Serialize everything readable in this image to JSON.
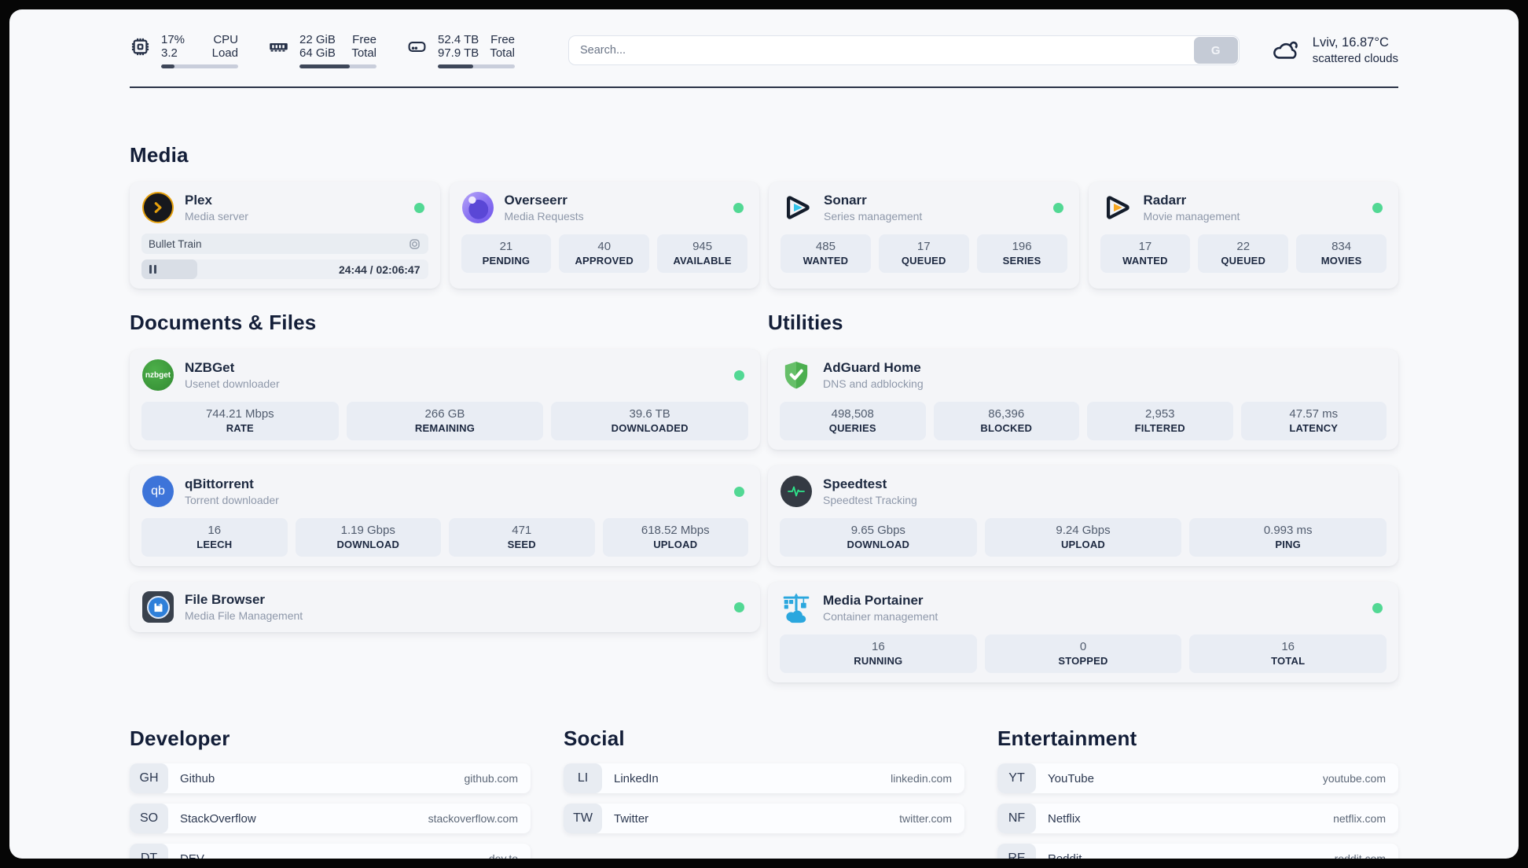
{
  "colors": {
    "status_online": "#52d894",
    "plex_accent": "#e5a00d",
    "sonarr_accent": "#35c5ea",
    "radarr_accent": "#f7a823",
    "adguard_accent": "#57b357",
    "speedtest_accent": "#2ee58b",
    "portainer_accent": "#2ba7de"
  },
  "header": {
    "metrics": [
      {
        "icon": "cpu-icon",
        "rows": [
          {
            "value": "17%",
            "label": "CPU"
          },
          {
            "value": "3.2",
            "label": "Load"
          }
        ],
        "progress_pct": 17
      },
      {
        "icon": "memory-icon",
        "rows": [
          {
            "value": "22 GiB",
            "label": "Free"
          },
          {
            "value": "64 GiB",
            "label": "Total"
          }
        ],
        "progress_pct": 65
      },
      {
        "icon": "disk-icon",
        "rows": [
          {
            "value": "52.4 TB",
            "label": "Free"
          },
          {
            "value": "97.9 TB",
            "label": "Total"
          }
        ],
        "progress_pct": 46
      }
    ],
    "search": {
      "placeholder": "Search...",
      "button_label": "G"
    },
    "weather": {
      "summary": "Lviv, 16.87°C",
      "condition": "scattered clouds"
    }
  },
  "media": {
    "title": "Media",
    "plex": {
      "title": "Plex",
      "subtitle": "Media server",
      "now_playing": "Bullet Train",
      "time": "24:44 / 02:06:47",
      "progress_pct": 19.5
    },
    "overseerr": {
      "title": "Overseerr",
      "subtitle": "Media Requests",
      "stats": [
        {
          "value": "21",
          "label": "PENDING"
        },
        {
          "value": "40",
          "label": "APPROVED"
        },
        {
          "value": "945",
          "label": "AVAILABLE"
        }
      ]
    },
    "sonarr": {
      "title": "Sonarr",
      "subtitle": "Series management",
      "stats": [
        {
          "value": "485",
          "label": "WANTED"
        },
        {
          "value": "17",
          "label": "QUEUED"
        },
        {
          "value": "196",
          "label": "SERIES"
        }
      ]
    },
    "radarr": {
      "title": "Radarr",
      "subtitle": "Movie management",
      "stats": [
        {
          "value": "17",
          "label": "WANTED"
        },
        {
          "value": "22",
          "label": "QUEUED"
        },
        {
          "value": "834",
          "label": "MOVIES"
        }
      ]
    }
  },
  "documents": {
    "title": "Documents & Files",
    "nzbget": {
      "title": "NZBGet",
      "subtitle": "Usenet downloader",
      "icon_text": "nzbget",
      "stats": [
        {
          "value": "744.21 Mbps",
          "label": "RATE"
        },
        {
          "value": "266 GB",
          "label": "REMAINING"
        },
        {
          "value": "39.6 TB",
          "label": "DOWNLOADED"
        }
      ]
    },
    "qbittorrent": {
      "title": "qBittorrent",
      "subtitle": "Torrent downloader",
      "icon_text": "qb",
      "stats": [
        {
          "value": "16",
          "label": "LEECH"
        },
        {
          "value": "1.19 Gbps",
          "label": "DOWNLOAD"
        },
        {
          "value": "471",
          "label": "SEED"
        },
        {
          "value": "618.52 Mbps",
          "label": "UPLOAD"
        }
      ]
    },
    "filebrowser": {
      "title": "File Browser",
      "subtitle": "Media File Management"
    }
  },
  "utilities": {
    "title": "Utilities",
    "adguard": {
      "title": "AdGuard Home",
      "subtitle": "DNS and adblocking",
      "stats": [
        {
          "value": "498,508",
          "label": "QUERIES"
        },
        {
          "value": "86,396",
          "label": "BLOCKED"
        },
        {
          "value": "2,953",
          "label": "FILTERED"
        },
        {
          "value": "47.57 ms",
          "label": "LATENCY"
        }
      ]
    },
    "speedtest": {
      "title": "Speedtest",
      "subtitle": "Speedtest Tracking",
      "stats": [
        {
          "value": "9.65 Gbps",
          "label": "DOWNLOAD"
        },
        {
          "value": "9.24 Gbps",
          "label": "UPLOAD"
        },
        {
          "value": "0.993 ms",
          "label": "PING"
        }
      ]
    },
    "portainer": {
      "title": "Media Portainer",
      "subtitle": "Container management",
      "stats": [
        {
          "value": "16",
          "label": "RUNNING"
        },
        {
          "value": "0",
          "label": "STOPPED"
        },
        {
          "value": "16",
          "label": "TOTAL"
        }
      ]
    }
  },
  "link_sections": [
    {
      "title": "Developer",
      "links": [
        {
          "abbr": "GH",
          "name": "Github",
          "url": "github.com"
        },
        {
          "abbr": "SO",
          "name": "StackOverflow",
          "url": "stackoverflow.com"
        },
        {
          "abbr": "DT",
          "name": "DEV",
          "url": "dev.to"
        }
      ]
    },
    {
      "title": "Social",
      "links": [
        {
          "abbr": "LI",
          "name": "LinkedIn",
          "url": "linkedin.com"
        },
        {
          "abbr": "TW",
          "name": "Twitter",
          "url": "twitter.com"
        }
      ]
    },
    {
      "title": "Entertainment",
      "links": [
        {
          "abbr": "YT",
          "name": "YouTube",
          "url": "youtube.com"
        },
        {
          "abbr": "NF",
          "name": "Netflix",
          "url": "netflix.com"
        },
        {
          "abbr": "RE",
          "name": "Reddit",
          "url": "reddit.com"
        }
      ]
    }
  ]
}
